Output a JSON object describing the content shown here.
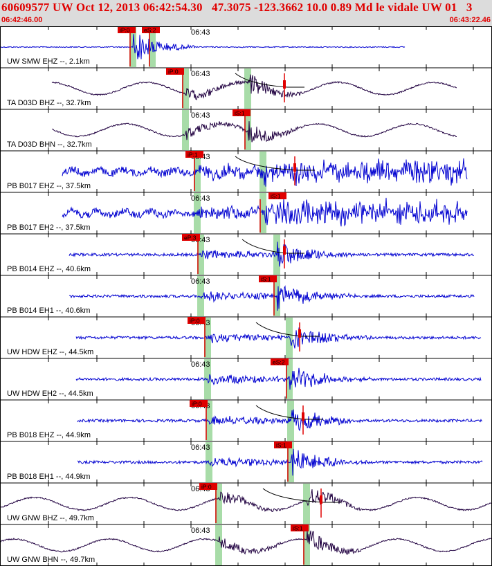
{
  "header": {
    "title": "60609577 UW Oct 12, 2013 06:42:54.30   47.3075 -123.3662 10.0 0.89 Md le vidale UW 01   3",
    "start_time": "06:42:46.00",
    "end_time": "06:43:22.46"
  },
  "minute_label": "06:43",
  "colors": {
    "title": "#e00000",
    "header_bg": "#dcdcdc",
    "waveform_blue": "#0000d0",
    "waveform_dark": "#200040",
    "pick_box": "#e00000",
    "pick_window": "#a8dca8",
    "grid": "#000000"
  },
  "traces": [
    {
      "label": "UW SMW EHZ --, 2.1km",
      "color": "blue",
      "picks": [
        "iP:0",
        "eS:2"
      ],
      "type": "spike"
    },
    {
      "label": "TA D03D BHZ --, 32.7km",
      "color": "dark",
      "picks": [
        "iP:0"
      ],
      "type": "long"
    },
    {
      "label": "TA D03D BHN --, 32.7km",
      "color": "dark",
      "picks": [
        "iS:1"
      ],
      "type": "long"
    },
    {
      "label": "PB B017 EHZ --, 37.5km",
      "color": "blue",
      "picks": [
        "iP:1"
      ],
      "type": "noisy"
    },
    {
      "label": "PB B017 EH2 --, 37.5km",
      "color": "blue",
      "picks": [
        "iS:1"
      ],
      "type": "noisy"
    },
    {
      "label": "PB B014 EHZ --, 40.6km",
      "color": "blue",
      "picks": [
        "eP:3"
      ],
      "type": "quiet"
    },
    {
      "label": "PB B014 EH1 --, 40.6km",
      "color": "blue",
      "picks": [
        "iS:1"
      ],
      "type": "quiet"
    },
    {
      "label": "UW HDW EHZ --, 44.5km",
      "color": "blue",
      "picks": [
        "iP:0"
      ],
      "type": "quiet"
    },
    {
      "label": "UW HDW EH2 --, 44.5km",
      "color": "blue",
      "picks": [
        "eS:2"
      ],
      "type": "quiet"
    },
    {
      "label": "PB B018 EHZ --, 44.9km",
      "color": "blue",
      "picks": [
        "iP:0"
      ],
      "type": "quiet"
    },
    {
      "label": "PB B018 EH1 --, 44.9km",
      "color": "blue",
      "picks": [
        "iS:1"
      ],
      "type": "quiet"
    },
    {
      "label": "UW GNW BHZ --, 49.7km",
      "color": "dark",
      "picks": [
        "iP:0"
      ],
      "type": "long"
    },
    {
      "label": "UW GNW BHN --, 49.7km",
      "color": "dark",
      "picks": [
        "iS:1"
      ],
      "type": "long"
    }
  ]
}
